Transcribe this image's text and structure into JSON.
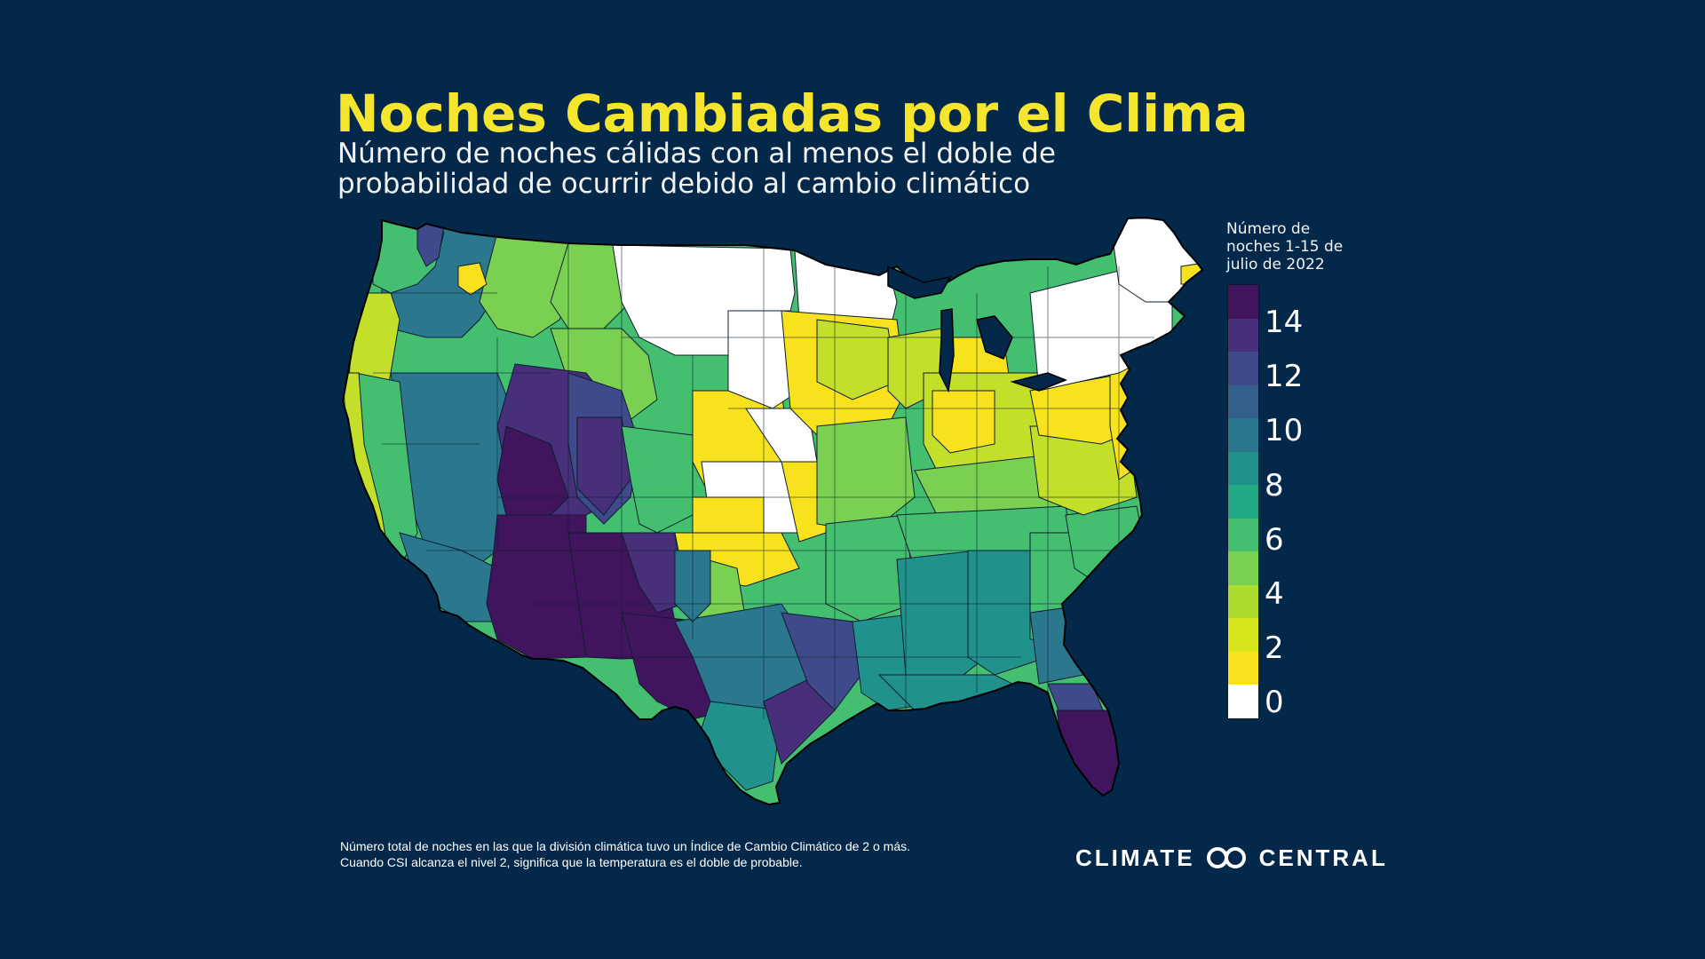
{
  "header": {
    "title": "Noches Cambiadas por el Clima",
    "subtitle_line1": "Número de noches cálidas con al menos el doble de",
    "subtitle_line2": "probabilidad de ocurrir debido al cambio climático"
  },
  "legend": {
    "title_line1": "Número de",
    "title_line2": "noches 1-15 de",
    "title_line3": "julio de 2022",
    "labels": [
      "14",
      "12",
      "10",
      "8",
      "6",
      "4",
      "2",
      "0"
    ],
    "colors": [
      "#41145e",
      "#472f7a",
      "#3f4a8a",
      "#345f8d",
      "#2a778e",
      "#21918c",
      "#22a884",
      "#44bf70",
      "#7ad151",
      "#addc30",
      "#d6e51c",
      "#f8e21e",
      "#ffffff"
    ]
  },
  "map": {
    "background": "#04284a",
    "region_colors": {
      "none": "#ffffff",
      "low": "#f8e21e",
      "low_mid": "#c3df2a",
      "mid_low": "#7ad151",
      "mid": "#44bf70",
      "teal": "#21918c",
      "deep_teal": "#2a778e",
      "blue": "#3f4a8a",
      "purple": "#472f7a",
      "deep_purple": "#41145e"
    }
  },
  "footer": {
    "note_line1": "Número total de noches en las que la división climática tuvo un Índice de Cambio Climático de 2 o más.",
    "note_line2": "Cuando CSI alcanza el nivel 2, significa que la temperatura es el doble de probable.",
    "brand_left": "CLIMATE",
    "brand_right": "CENTRAL"
  }
}
